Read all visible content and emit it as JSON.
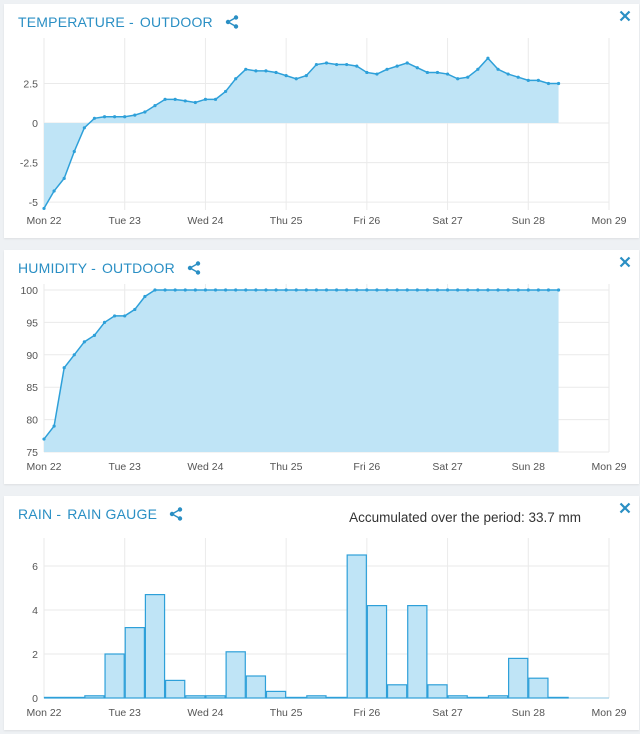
{
  "panels": [
    {
      "key": "temperature",
      "title_sensor": "TEMPERATURE -",
      "title_device": "OUTDOOR",
      "share_icon": "share-icon",
      "close_icon": "close-icon"
    },
    {
      "key": "humidity",
      "title_sensor": "HUMIDITY -",
      "title_device": "OUTDOOR",
      "share_icon": "share-icon",
      "close_icon": "close-icon"
    },
    {
      "key": "rain",
      "title_sensor": "RAIN -",
      "title_device": "RAIN GAUGE",
      "accumulated": "Accumulated over the period: 33.7 mm",
      "share_icon": "share-icon",
      "close_icon": "close-icon"
    }
  ],
  "colors": {
    "accent": "#2a8fc4",
    "line": "#2ea0d9",
    "fill": "#bfe4f6",
    "grid": "#eaeaea"
  },
  "chart_data": [
    {
      "type": "area",
      "title": "TEMPERATURE - OUTDOOR",
      "xlabel": "",
      "ylabel": "",
      "x_unit": "days since Mon 22",
      "xlim": [
        0,
        7
      ],
      "ylim": [
        -5.5,
        5
      ],
      "yticks": [
        -5,
        -2.5,
        0,
        2.5
      ],
      "ytick_labels": [
        "-5",
        "-2.5",
        "0",
        "2.5"
      ],
      "xtick_labels": [
        "Mon 22",
        "Tue 23",
        "Wed 24",
        "Thu 25",
        "Fri 26",
        "Sat 27",
        "Sun 28",
        "Mon 29"
      ],
      "grid": true,
      "x": [
        0,
        0.125,
        0.25,
        0.375,
        0.5,
        0.625,
        0.75,
        0.875,
        1.0,
        1.125,
        1.25,
        1.375,
        1.5,
        1.625,
        1.75,
        1.875,
        2.0,
        2.125,
        2.25,
        2.375,
        2.5,
        2.625,
        2.75,
        2.875,
        3.0,
        3.125,
        3.25,
        3.375,
        3.5,
        3.625,
        3.75,
        3.875,
        4.0,
        4.125,
        4.25,
        4.375,
        4.5,
        4.625,
        4.75,
        4.875,
        5.0,
        5.125,
        5.25,
        5.375,
        5.5,
        5.625,
        5.75,
        5.875,
        6.0,
        6.125,
        6.25,
        6.375
      ],
      "values": [
        -5.4,
        -4.3,
        -3.5,
        -1.8,
        -0.3,
        0.3,
        0.4,
        0.4,
        0.4,
        0.5,
        0.7,
        1.1,
        1.5,
        1.5,
        1.4,
        1.3,
        1.5,
        1.5,
        2.0,
        2.8,
        3.4,
        3.3,
        3.3,
        3.2,
        3.0,
        2.8,
        3.0,
        3.7,
        3.8,
        3.7,
        3.7,
        3.6,
        3.2,
        3.1,
        3.4,
        3.6,
        3.8,
        3.5,
        3.2,
        3.2,
        3.1,
        2.8,
        2.9,
        3.4,
        4.1,
        3.4,
        3.1,
        2.9,
        2.7,
        2.7,
        2.5,
        2.5
      ]
    },
    {
      "type": "area",
      "title": "HUMIDITY - OUTDOOR",
      "xlabel": "",
      "ylabel": "",
      "x_unit": "days since Mon 22",
      "xlim": [
        0,
        7
      ],
      "ylim": [
        75,
        100
      ],
      "yticks": [
        75,
        80,
        85,
        90,
        95,
        100
      ],
      "ytick_labels": [
        "75",
        "80",
        "85",
        "90",
        "95",
        "100"
      ],
      "xtick_labels": [
        "Mon 22",
        "Tue 23",
        "Wed 24",
        "Thu 25",
        "Fri 26",
        "Sat 27",
        "Sun 28",
        "Mon 29"
      ],
      "grid": true,
      "x": [
        0,
        0.125,
        0.25,
        0.375,
        0.5,
        0.625,
        0.75,
        0.875,
        1.0,
        1.125,
        1.25,
        1.375,
        1.5,
        1.625,
        1.75,
        1.875,
        2.0,
        2.125,
        2.25,
        2.375,
        2.5,
        2.625,
        2.75,
        2.875,
        3.0,
        3.125,
        3.25,
        3.375,
        3.5,
        3.625,
        3.75,
        3.875,
        4.0,
        4.125,
        4.25,
        4.375,
        4.5,
        4.625,
        4.75,
        4.875,
        5.0,
        5.125,
        5.25,
        5.375,
        5.5,
        5.625,
        5.75,
        5.875,
        6.0,
        6.125,
        6.25,
        6.375
      ],
      "values": [
        77,
        79,
        88,
        90,
        92,
        93,
        95,
        96,
        96,
        97,
        99,
        100,
        100,
        100,
        100,
        100,
        100,
        100,
        100,
        100,
        100,
        100,
        100,
        100,
        100,
        100,
        100,
        100,
        100,
        100,
        100,
        100,
        100,
        100,
        100,
        100,
        100,
        100,
        100,
        100,
        100,
        100,
        100,
        100,
        100,
        100,
        100,
        100,
        100,
        100,
        100,
        100
      ]
    },
    {
      "type": "bar",
      "title": "RAIN - RAIN GAUGE",
      "xlabel": "",
      "ylabel": "",
      "x_unit": "days since Mon 22 (bar start)",
      "bar_width": 0.25,
      "xlim": [
        0,
        7
      ],
      "ylim": [
        0,
        7
      ],
      "yticks": [
        0,
        2,
        4,
        6
      ],
      "ytick_labels": [
        "0",
        "2",
        "4",
        "6"
      ],
      "xtick_labels": [
        "Mon 22",
        "Tue 23",
        "Wed 24",
        "Thu 25",
        "Fri 26",
        "Sat 27",
        "Sun 28",
        "Mon 29"
      ],
      "grid": true,
      "x": [
        0,
        0.25,
        0.5,
        0.75,
        1.0,
        1.25,
        1.5,
        1.75,
        2.0,
        2.25,
        2.5,
        2.75,
        3.0,
        3.25,
        3.5,
        3.75,
        4.0,
        4.25,
        4.5,
        4.75,
        5.0,
        5.25,
        5.5,
        5.75,
        6.0,
        6.25
      ],
      "values": [
        0,
        0,
        0.1,
        2.0,
        3.2,
        4.7,
        0.8,
        0.1,
        0.1,
        2.1,
        1.0,
        0.3,
        0,
        0.1,
        0,
        6.5,
        4.2,
        0.6,
        4.2,
        0.6,
        0.1,
        0,
        0.1,
        1.8,
        0.9,
        0
      ]
    }
  ]
}
